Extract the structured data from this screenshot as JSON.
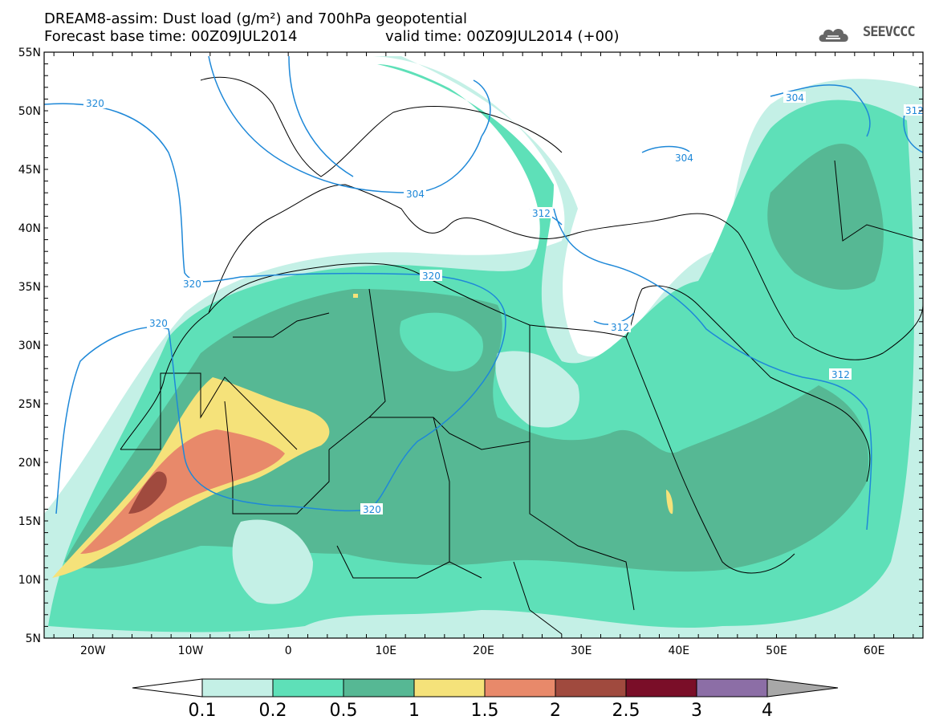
{
  "header": {
    "line1": "DREAM8-assim: Dust load (g/m²) and 700hPa geopotential",
    "line2": "Forecast base time: 00Z09JUL2014",
    "valid": "valid time: 00Z09JUL2014 (+00)",
    "logo_text": "SEEVCCC"
  },
  "axes": {
    "lon_labels": [
      "20W",
      "10W",
      "0",
      "10E",
      "20E",
      "30E",
      "40E",
      "50E",
      "60E"
    ],
    "lat_labels": [
      "55N",
      "50N",
      "45N",
      "40N",
      "35N",
      "30N",
      "25N",
      "20N",
      "15N",
      "10N",
      "5N"
    ],
    "lon_range": [
      -25,
      65
    ],
    "lat_range": [
      5,
      55
    ]
  },
  "contour_labels": [
    "320",
    "320",
    "320",
    "320",
    "320",
    "304",
    "304",
    "304",
    "312",
    "312",
    "312",
    "312"
  ],
  "colorbar": {
    "ticks": [
      "0.1",
      "0.2",
      "0.5",
      "1",
      "1.5",
      "2",
      "2.5",
      "3",
      "4"
    ],
    "colors": [
      "#c4f0e6",
      "#5ee0b8",
      "#56b894",
      "#f5e27a",
      "#e8896a",
      "#a04a3e",
      "#7a0e28",
      "#8c6ea6",
      "#a8a8a8"
    ]
  },
  "colors": {
    "contour_line": "#1e88d8",
    "coast": "#000000"
  }
}
